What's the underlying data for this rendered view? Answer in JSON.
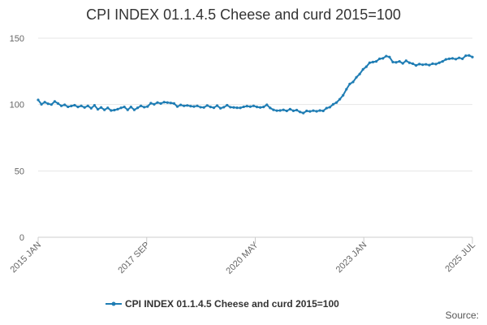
{
  "chart_data": {
    "type": "line",
    "title": "CPI INDEX 01.1.4.5 Cheese and curd 2015=100",
    "xlabel": "",
    "ylabel": "",
    "ylim": [
      0,
      150
    ],
    "yticks": [
      0,
      50,
      100,
      150
    ],
    "grid": true,
    "legend_position": "bottom",
    "color": "#1f7db4",
    "x_start": "2015 JAN",
    "x_end": "2025 JUL",
    "xticks": [
      "2015 JAN",
      "2017 SEP",
      "2020 MAY",
      "2023 JAN",
      "2025 JUL"
    ],
    "series": [
      {
        "name": "CPI INDEX 01.1.4.5 Cheese and curd 2015=100",
        "frequency": "monthly",
        "values": [
          103.5,
          100.2,
          101.8,
          100.6,
          100.0,
          102.3,
          100.8,
          99.0,
          99.8,
          98.3,
          98.9,
          99.5,
          98.2,
          99.0,
          97.8,
          99.0,
          97.2,
          99.4,
          96.4,
          97.8,
          96.0,
          97.5,
          95.5,
          95.8,
          96.5,
          97.5,
          98.2,
          96.0,
          98.2,
          96.0,
          97.5,
          99.0,
          98.0,
          98.5,
          101.0,
          100.2,
          101.5,
          100.8,
          101.8,
          101.5,
          101.2,
          100.8,
          98.5,
          99.7,
          99.0,
          99.3,
          98.8,
          98.5,
          99.0,
          98.0,
          97.8,
          99.3,
          98.2,
          97.6,
          99.2,
          97.2,
          98.0,
          99.5,
          98.0,
          97.8,
          97.6,
          97.5,
          98.3,
          98.8,
          98.4,
          99.0,
          98.2,
          97.8,
          98.2,
          99.8,
          97.4,
          96.0,
          95.4,
          95.5,
          96.0,
          95.2,
          96.5,
          95.3,
          95.8,
          94.4,
          93.6,
          95.2,
          94.8,
          95.4,
          94.9,
          95.5,
          95.2,
          97.3,
          98.0,
          100.2,
          101.5,
          104.0,
          107.0,
          111.5,
          115.5,
          117.0,
          120.5,
          123.0,
          126.5,
          128.5,
          131.5,
          132.0,
          132.5,
          134.5,
          134.8,
          136.5,
          135.8,
          132.0,
          131.8,
          132.5,
          131.0,
          133.0,
          131.5,
          130.8,
          129.5,
          130.5,
          130.0,
          130.3,
          129.7,
          130.8,
          130.5,
          131.5,
          132.5,
          134.0,
          134.5,
          134.8,
          134.2,
          135.2,
          134.5,
          136.8,
          137.0,
          135.8
        ]
      }
    ]
  },
  "source_label": "Source:"
}
